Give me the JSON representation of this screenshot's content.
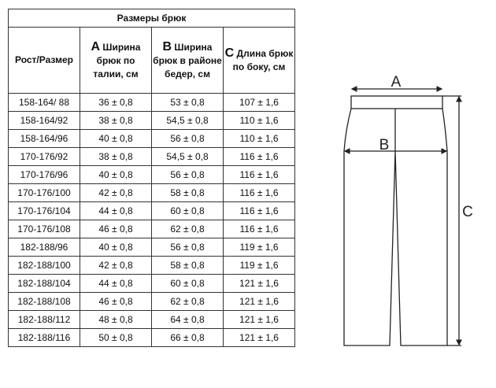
{
  "table": {
    "title": "Размеры брюк",
    "headers": [
      {
        "letter": "",
        "text": "Рост/Размер"
      },
      {
        "letter": "A",
        "text": "Ширина брюк по талии, см"
      },
      {
        "letter": "B",
        "text": "Ширина брюк в районе бедер, см"
      },
      {
        "letter": "C",
        "text": "Длина брюк по боку, см"
      }
    ],
    "rows": [
      [
        "158-164/ 88",
        "36 ± 0,8",
        "53 ± 0,8",
        "107 ± 1,6"
      ],
      [
        "158-164/92",
        "38 ± 0,8",
        "54,5 ± 0,8",
        "110 ± 1,6"
      ],
      [
        "158-164/96",
        "40 ± 0,8",
        "56 ± 0,8",
        "110 ± 1,6"
      ],
      [
        "170-176/92",
        "38 ± 0,8",
        "54,5 ± 0,8",
        "116 ± 1,6"
      ],
      [
        "170-176/96",
        "40 ± 0,8",
        "56 ± 0,8",
        "116 ± 1,6"
      ],
      [
        "170-176/100",
        "42 ± 0,8",
        "58 ± 0,8",
        "116 ± 1,6"
      ],
      [
        "170-176/104",
        "44 ± 0,8",
        "60 ± 0,8",
        "116 ± 1,6"
      ],
      [
        "170-176/108",
        "46 ± 0,8",
        "62 ± 0,8",
        "116 ± 1,6"
      ],
      [
        "182-188/96",
        "40 ± 0,8",
        "56 ± 0,8",
        "119 ± 1,6"
      ],
      [
        "182-188/100",
        "42 ± 0,8",
        "58 ± 0,8",
        "119 ± 1,6"
      ],
      [
        "182-188/104",
        "44 ± 0,8",
        "60 ± 0,8",
        "121 ± 1,6"
      ],
      [
        "182-188/108",
        "46 ± 0,8",
        "62 ± 0,8",
        "121 ± 1,6"
      ],
      [
        "182-188/112",
        "48 ± 0,8",
        "64 ± 0,8",
        "121 ± 1,6"
      ],
      [
        "182-188/116",
        "50 ± 0,8",
        "66 ± 0,8",
        "121 ± 1,6"
      ]
    ]
  },
  "diagram": {
    "label_a": "A",
    "label_b": "B",
    "label_c": "C"
  }
}
